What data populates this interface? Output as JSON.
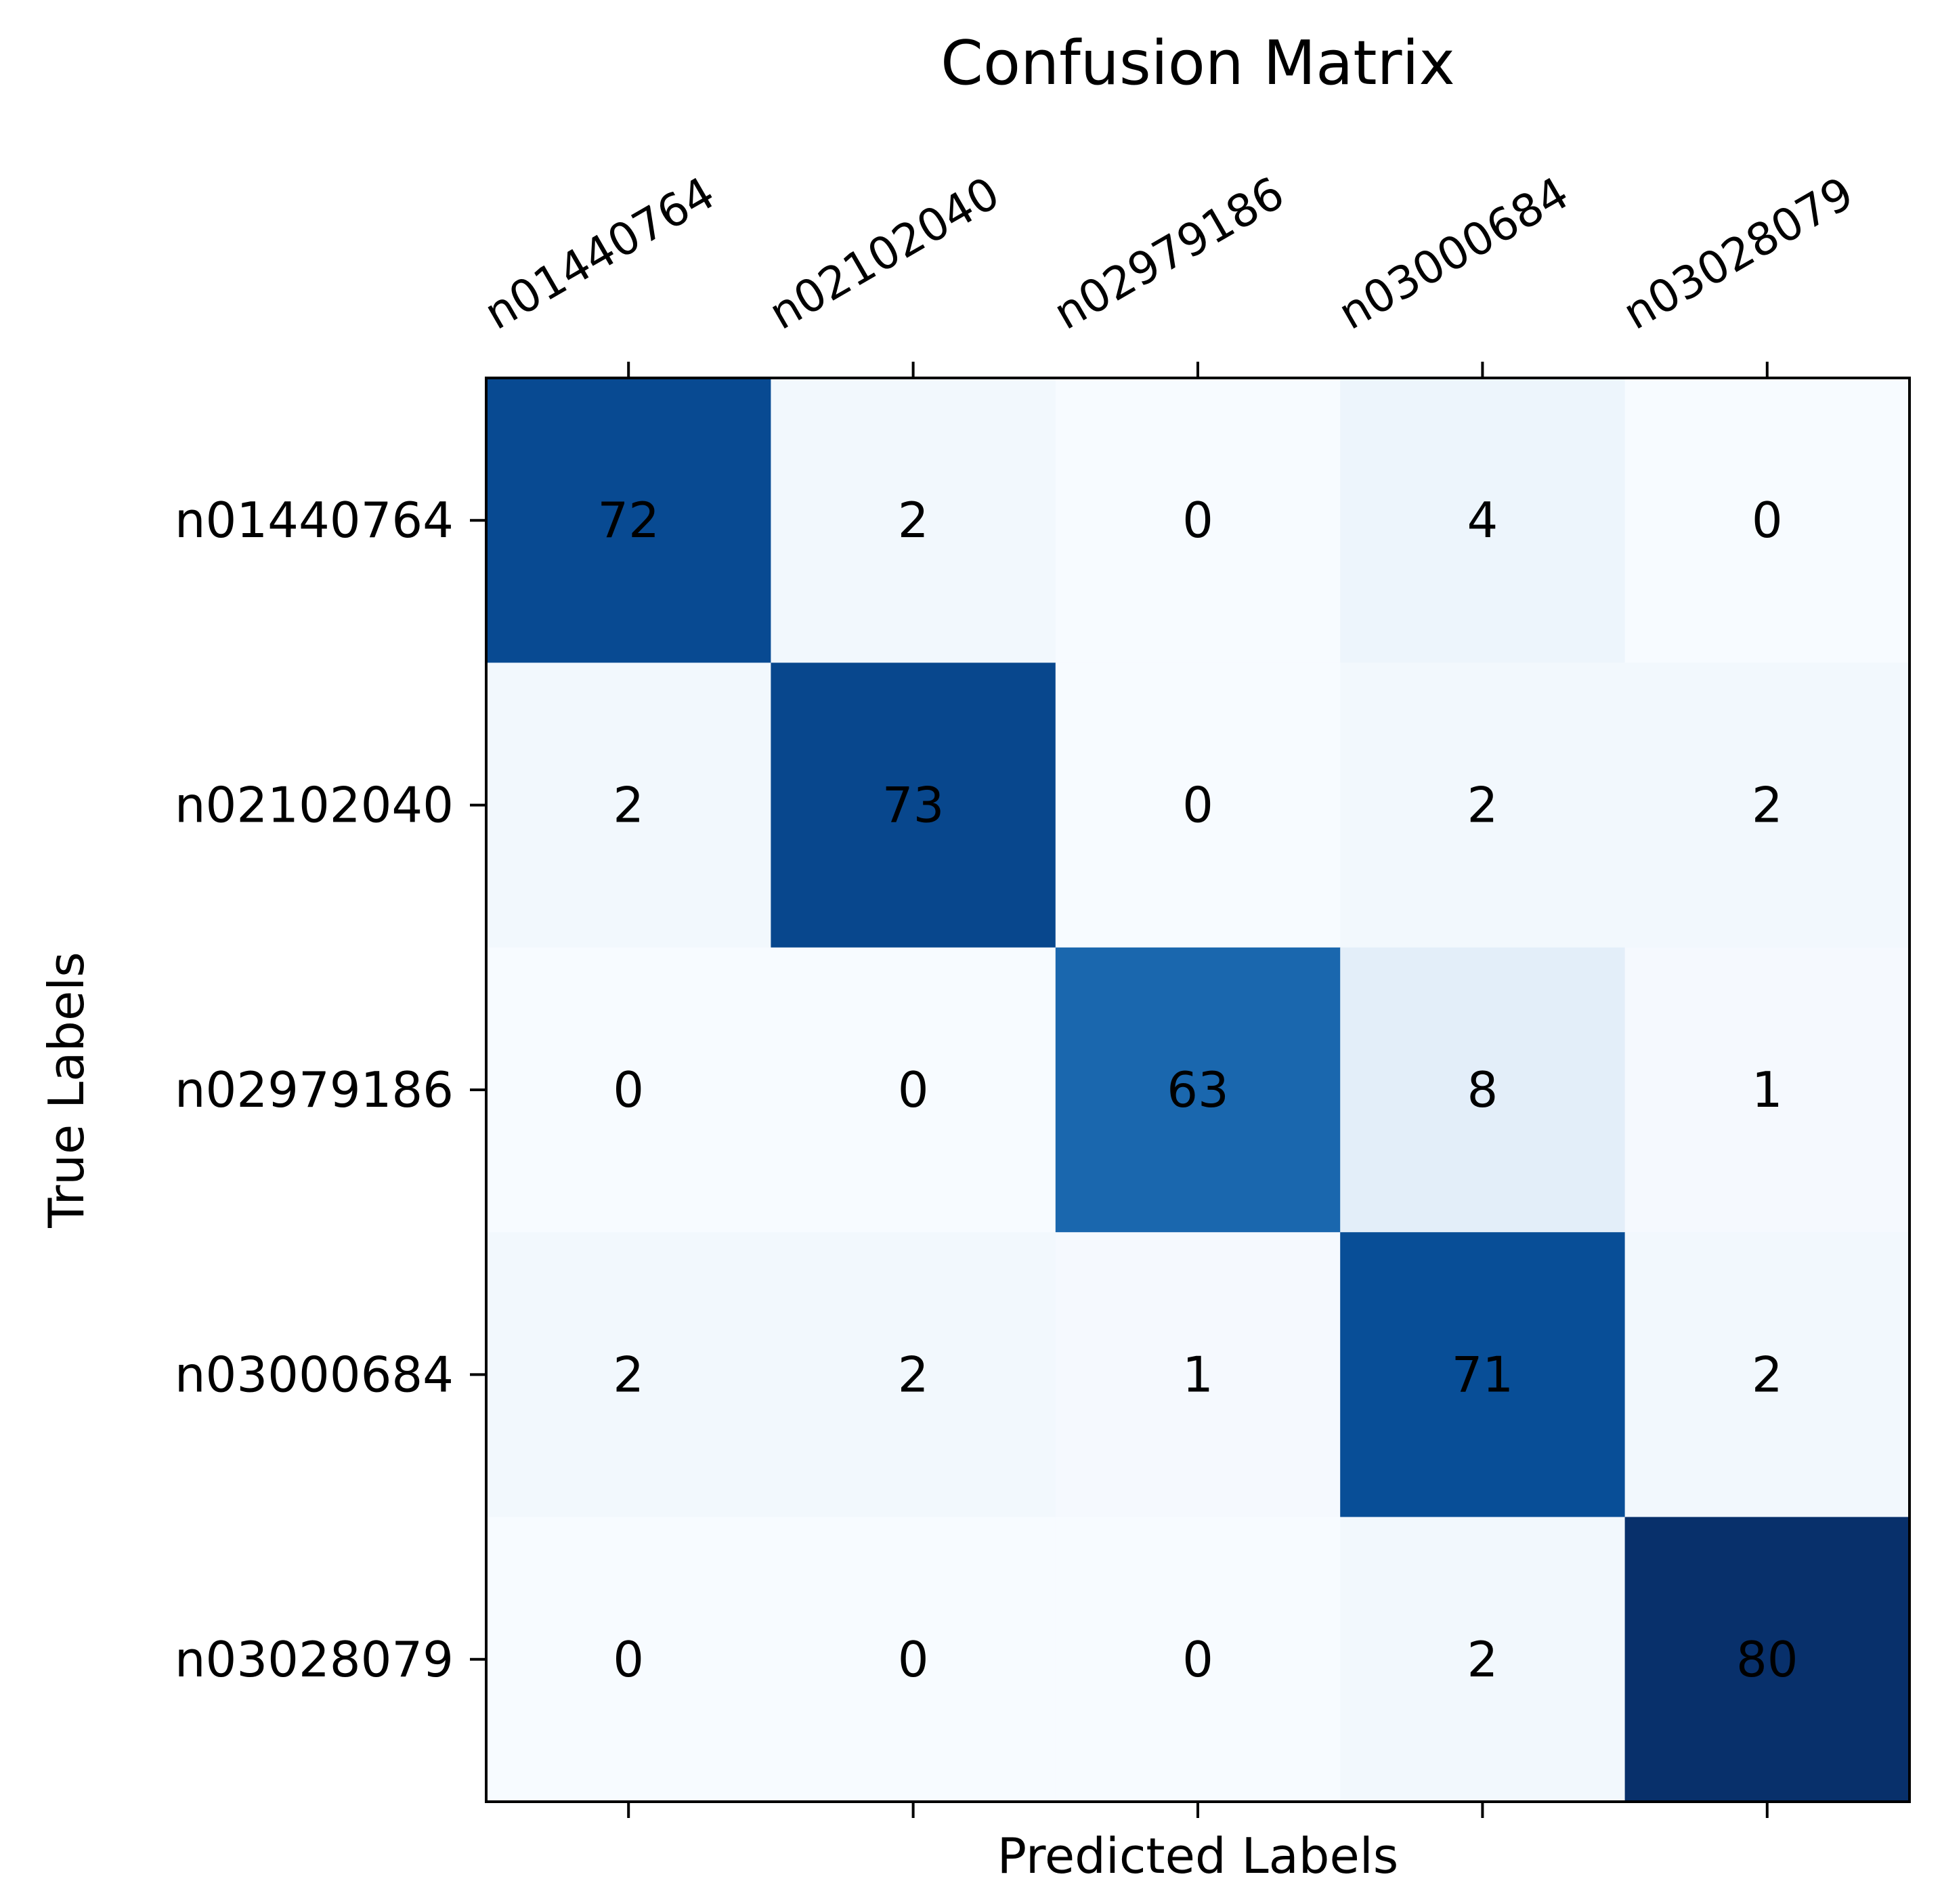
{
  "chart_data": {
    "type": "heatmap",
    "title": "Confusion Matrix",
    "xlabel": "Predicted Labels",
    "ylabel": "True Labels",
    "x_categories": [
      "n01440764",
      "n02102040",
      "n02979186",
      "n03000684",
      "n03028079"
    ],
    "y_categories": [
      "n01440764",
      "n02102040",
      "n02979186",
      "n03000684",
      "n03028079"
    ],
    "matrix": [
      [
        72,
        2,
        0,
        4,
        0
      ],
      [
        2,
        73,
        0,
        2,
        2
      ],
      [
        0,
        0,
        63,
        8,
        1
      ],
      [
        2,
        2,
        1,
        71,
        2
      ],
      [
        0,
        0,
        0,
        2,
        80
      ]
    ],
    "colormap": "Blues",
    "value_range": [
      0,
      80
    ],
    "colorbar": false,
    "grid": false,
    "xtick_position": "top"
  }
}
